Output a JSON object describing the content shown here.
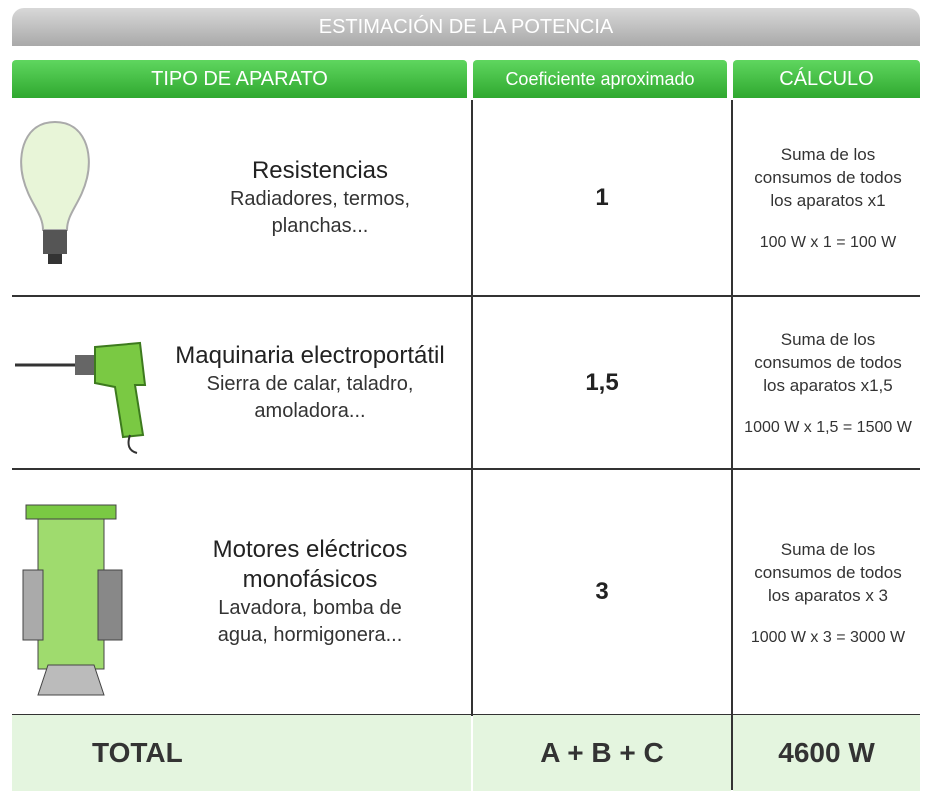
{
  "header": {
    "title": "ESTIMACIÓN DE LA POTENCIA"
  },
  "table": {
    "columns": [
      "TIPO DE APARATO",
      "Coeficiente aproximado",
      "CÁLCULO"
    ],
    "rows": [
      {
        "title": [
          "Resistencias"
        ],
        "description": [
          "Radiadores, termos,",
          "planchas..."
        ],
        "coefficient": "1",
        "calc": [
          "Suma de los",
          "consumos de todos",
          "los aparatos x1"
        ],
        "example": "100 W x 1 = 100 W"
      },
      {
        "title": [
          "Maquinaria electroportátil"
        ],
        "description": [
          "Sierra de calar, taladro,",
          "amoladora..."
        ],
        "coefficient": "1,5",
        "calc": [
          "Suma de los",
          "consumos de todos",
          "los aparatos x1,5"
        ],
        "example": "1000 W x 1,5 = 1500 W"
      },
      {
        "title": [
          "Motores eléctricos",
          "monofásicos"
        ],
        "description": [
          "Lavadora, bomba de",
          "agua, hormigonera..."
        ],
        "coefficient": "3",
        "calc": [
          "Suma de los",
          "consumos de todos",
          "los aparatos x 3"
        ],
        "example": "1000 W x 3 = 3000 W"
      }
    ],
    "total": {
      "label": "TOTAL",
      "formula": "A + B + C",
      "value": "4600 W"
    }
  }
}
